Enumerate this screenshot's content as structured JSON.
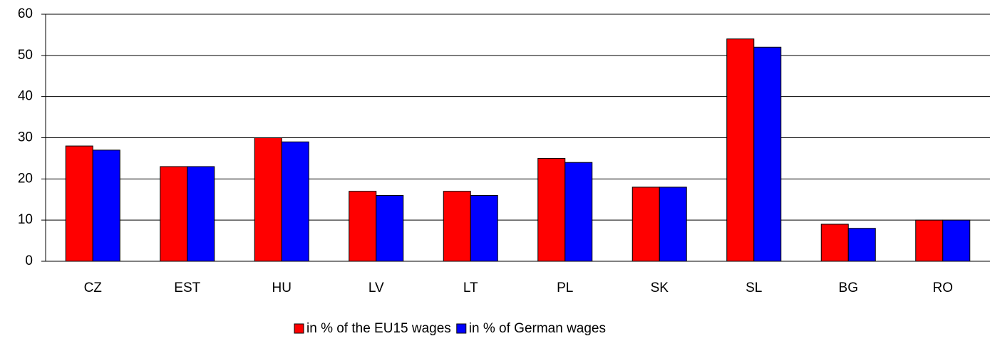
{
  "chart_data": {
    "type": "bar",
    "categories": [
      "CZ",
      "EST",
      "HU",
      "LV",
      "LT",
      "PL",
      "SK",
      "SL",
      "BG",
      "RO"
    ],
    "series": [
      {
        "name": "in % of the EU15 wages",
        "color": "#ff0000",
        "values": [
          28,
          23,
          30,
          17,
          17,
          25,
          18,
          54,
          9,
          10
        ]
      },
      {
        "name": "in % of German wages",
        "color": "#0000ff",
        "values": [
          27,
          23,
          29,
          16,
          16,
          24,
          18,
          52,
          8,
          10
        ]
      }
    ],
    "ylim": [
      0,
      60
    ],
    "yticks": [
      0,
      10,
      20,
      30,
      40,
      50,
      60
    ],
    "grid": true,
    "legend": "bottom"
  }
}
